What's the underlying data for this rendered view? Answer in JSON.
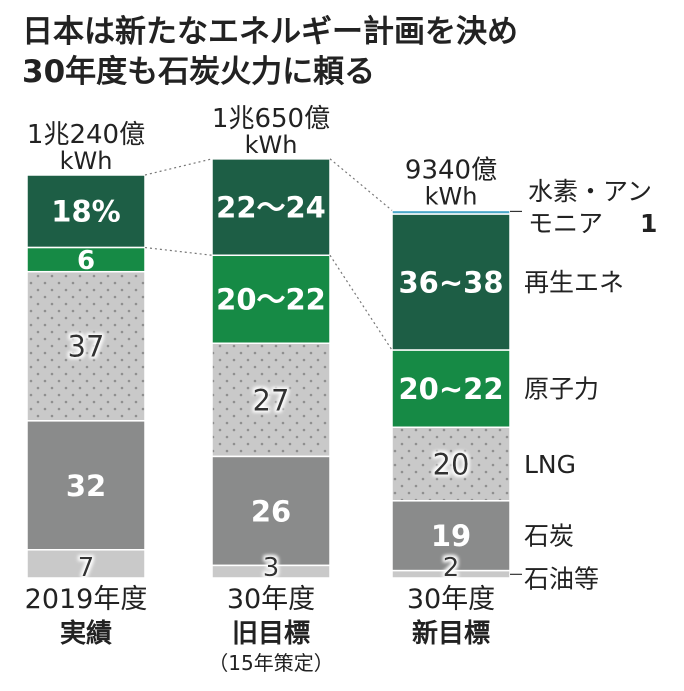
{
  "chart_data": {
    "type": "bar",
    "stacked": true,
    "title": [
      "日本は新たなエネルギー計画を決め",
      "30年度も石炭火力に頼る"
    ],
    "unit": "%",
    "categories": [
      {
        "line1": "2019年度",
        "line2": "実績",
        "line3": ""
      },
      {
        "line1": "30年度",
        "line2": "旧目標",
        "line3": "（15年策定）"
      },
      {
        "line1": "30年度",
        "line2": "新目標",
        "line3": ""
      }
    ],
    "totals": [
      {
        "value": 10240,
        "label1": "1兆240億",
        "label2": "kWh"
      },
      {
        "value": 10650,
        "label1": "1兆650億",
        "label2": "kWh"
      },
      {
        "value": 9340,
        "label1": "9340億",
        "label2": "kWh"
      }
    ],
    "series": [
      {
        "name": "水素・アンモニア",
        "color": "#4aa8c8",
        "values": [
          0,
          0,
          1
        ],
        "labels": [
          "",
          "",
          ""
        ],
        "legend": [
          "水素・アン",
          "モニア"
        ],
        "legend_value": "1"
      },
      {
        "name": "再生エネ",
        "color": "#1d5e45",
        "values": [
          18,
          23,
          37
        ],
        "labels": [
          "18%",
          "22～24",
          "36~38"
        ],
        "legend": [
          "再生エネ"
        ]
      },
      {
        "name": "原子力",
        "color": "#168a45",
        "values": [
          6,
          21,
          21
        ],
        "labels": [
          "6",
          "20～22",
          "20~22"
        ],
        "legend": [
          "原子力"
        ]
      },
      {
        "name": "LNG",
        "color": "#c9c9c9",
        "dotted": true,
        "values": [
          37,
          27,
          20
        ],
        "labels": [
          "37",
          "27",
          "20"
        ],
        "legend": [
          "LNG"
        ]
      },
      {
        "name": "石炭",
        "color": "#8a8b8b",
        "values": [
          32,
          26,
          19
        ],
        "labels": [
          "32",
          "26",
          "19"
        ],
        "legend": [
          "石炭"
        ]
      },
      {
        "name": "石油等",
        "color": "#c9c9c9",
        "values": [
          7,
          3,
          2
        ],
        "labels": [
          "7",
          "3",
          "2"
        ],
        "legend": [
          "石油等"
        ]
      }
    ]
  }
}
